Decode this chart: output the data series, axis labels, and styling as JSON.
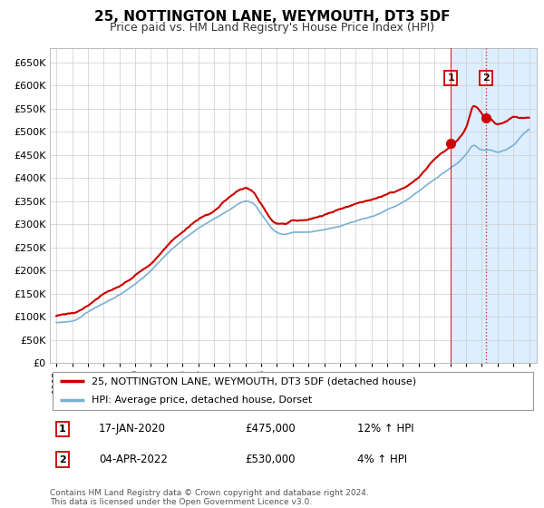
{
  "title": "25, NOTTINGTON LANE, WEYMOUTH, DT3 5DF",
  "subtitle": "Price paid vs. HM Land Registry's House Price Index (HPI)",
  "property_label": "25, NOTTINGTON LANE, WEYMOUTH, DT3 5DF (detached house)",
  "hpi_label": "HPI: Average price, detached house, Dorset",
  "footnote1": "Contains HM Land Registry data © Crown copyright and database right 2024.",
  "footnote2": "This data is licensed under the Open Government Licence v3.0.",
  "sale1_label": "17-JAN-2020",
  "sale1_price": "£475,000",
  "sale1_hpi": "12% ↑ HPI",
  "sale2_label": "04-APR-2022",
  "sale2_price": "£530,000",
  "sale2_hpi": "4% ↑ HPI",
  "line_color_property": "#cc0000",
  "line_color_hpi": "#7ab0d4",
  "sale_dot_color": "#cc0000",
  "vline1_color": "#cc0000",
  "vline2_color": "#cc0000",
  "highlight_color": "#ddeeff",
  "ylim_min": 0,
  "ylim_max": 680000,
  "ytick_labels": [
    "£0",
    "£50K",
    "£100K",
    "£150K",
    "£200K",
    "£250K",
    "£300K",
    "£350K",
    "£400K",
    "£450K",
    "£500K",
    "£550K",
    "£600K",
    "£650K"
  ],
  "ytick_values": [
    0,
    50000,
    100000,
    150000,
    200000,
    250000,
    300000,
    350000,
    400000,
    450000,
    500000,
    550000,
    600000,
    650000
  ],
  "sale1_year": 2020.046,
  "sale2_year": 2022.254,
  "sale1_price_val": 475000,
  "sale2_price_val": 530000,
  "prop_keypoints_x": [
    1995,
    1996,
    1997,
    1998,
    1999,
    2000,
    2001,
    2002,
    2003,
    2004,
    2005,
    2006,
    2007,
    2007.5,
    2008,
    2009,
    2009.5,
    2010,
    2011,
    2012,
    2013,
    2014,
    2015,
    2016,
    2017,
    2018,
    2019,
    2020.046,
    2020.5,
    2021,
    2021.5,
    2022,
    2022.254,
    2022.5,
    2023,
    2023.5,
    2024,
    2024.5,
    2025
  ],
  "prop_keypoints_y": [
    102000,
    105000,
    125000,
    145000,
    160000,
    185000,
    210000,
    250000,
    280000,
    310000,
    330000,
    360000,
    380000,
    370000,
    345000,
    305000,
    305000,
    315000,
    318000,
    330000,
    342000,
    355000,
    365000,
    375000,
    390000,
    415000,
    450000,
    475000,
    490000,
    515000,
    560000,
    545000,
    530000,
    535000,
    520000,
    525000,
    535000,
    530000,
    530000
  ],
  "hpi_keypoints_x": [
    1995,
    1996,
    1997,
    1998,
    1999,
    2000,
    2001,
    2002,
    2003,
    2004,
    2005,
    2006,
    2007,
    2007.5,
    2008,
    2009,
    2009.5,
    2010,
    2011,
    2012,
    2013,
    2014,
    2015,
    2016,
    2017,
    2018,
    2019,
    2020,
    2020.5,
    2021,
    2021.5,
    2022,
    2022.5,
    2023,
    2023.5,
    2024,
    2024.5,
    2025
  ],
  "hpi_keypoints_y": [
    88000,
    90000,
    110000,
    130000,
    148000,
    170000,
    200000,
    235000,
    265000,
    290000,
    310000,
    330000,
    348000,
    342000,
    320000,
    280000,
    275000,
    280000,
    282000,
    288000,
    295000,
    305000,
    315000,
    330000,
    345000,
    368000,
    395000,
    420000,
    432000,
    450000,
    470000,
    460000,
    460000,
    455000,
    460000,
    470000,
    490000,
    505000
  ]
}
